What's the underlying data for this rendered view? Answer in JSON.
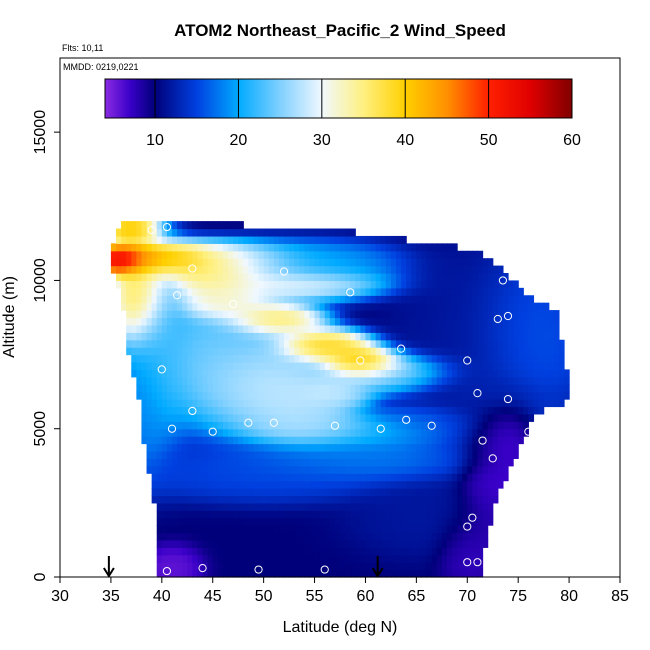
{
  "chart_data": {
    "type": "heatmap",
    "title": "ATOM2 Northeast_Pacific_2 Wind_Speed",
    "notes": [
      "Flts: 10,11",
      "MMDD: 0219,0221"
    ],
    "xlabel": "Latitude (deg N)",
    "ylabel": "Altitude (m)",
    "xlim": [
      30,
      85
    ],
    "ylim": [
      0,
      17500
    ],
    "x_ticks": [
      30,
      35,
      40,
      45,
      50,
      55,
      60,
      65,
      70,
      75,
      80,
      85
    ],
    "y_ticks": [
      0,
      5000,
      10000,
      15000
    ],
    "grid": false,
    "colorbar": {
      "range": [
        4,
        60
      ],
      "tick_values": [
        10,
        20,
        30,
        40,
        50,
        60
      ],
      "stops": [
        {
          "v": 4,
          "c": "#8B2BE2"
        },
        {
          "v": 7,
          "c": "#3A00C8"
        },
        {
          "v": 10,
          "c": "#00007A"
        },
        {
          "v": 15,
          "c": "#0040E0"
        },
        {
          "v": 20,
          "c": "#00AAFF"
        },
        {
          "v": 25,
          "c": "#80D0FF"
        },
        {
          "v": 30,
          "c": "#F0F8FF"
        },
        {
          "v": 35,
          "c": "#FFF080"
        },
        {
          "v": 40,
          "c": "#FFD000"
        },
        {
          "v": 45,
          "c": "#FF9000"
        },
        {
          "v": 50,
          "c": "#FF2000"
        },
        {
          "v": 55,
          "c": "#E00000"
        },
        {
          "v": 60,
          "c": "#800000"
        }
      ]
    },
    "curtain": {
      "lat_step": 0.5,
      "alt_step": 250,
      "left_edge": [
        [
          0,
          40
        ],
        [
          2500,
          39.5
        ],
        [
          4500,
          38.5
        ],
        [
          6000,
          38
        ],
        [
          7500,
          37
        ],
        [
          9000,
          36.5
        ],
        [
          11000,
          35
        ],
        [
          12000,
          36.5
        ]
      ],
      "right_edge": [
        [
          0,
          71.5
        ],
        [
          1000,
          71.5
        ],
        [
          2500,
          72.5
        ],
        [
          4000,
          74.5
        ],
        [
          5500,
          76.5
        ],
        [
          6000,
          80
        ],
        [
          7000,
          79.5
        ],
        [
          9000,
          78.5
        ],
        [
          9500,
          75.5
        ],
        [
          10500,
          73
        ],
        [
          11000,
          71
        ],
        [
          11750,
          56.5
        ],
        [
          12000,
          39.5
        ]
      ],
      "background_speed": 10,
      "features": [
        {
          "lat": 36,
          "alt": 10700,
          "value": 60,
          "slat": 1.2,
          "salt": 250
        },
        {
          "lat": 38.5,
          "alt": 10750,
          "value": 54,
          "slat": 2.5,
          "salt": 300
        },
        {
          "lat": 43,
          "alt": 10600,
          "value": 43,
          "slat": 3.5,
          "salt": 350
        },
        {
          "lat": 48,
          "alt": 10600,
          "value": 31,
          "slat": 3.5,
          "salt": 350
        },
        {
          "lat": 55,
          "alt": 10600,
          "value": 21,
          "slat": 4.5,
          "salt": 400
        },
        {
          "lat": 37,
          "alt": 11750,
          "value": 45,
          "slat": 1.5,
          "salt": 250
        },
        {
          "lat": 38,
          "alt": 9500,
          "value": 42,
          "slat": 1.5,
          "salt": 900
        },
        {
          "lat": 45,
          "alt": 10000,
          "value": 38,
          "slat": 2.5,
          "salt": 400
        },
        {
          "lat": 52,
          "alt": 9900,
          "value": 33,
          "slat": 5.0,
          "salt": 300
        },
        {
          "lat": 46,
          "alt": 9200,
          "value": 36,
          "slat": 2.5,
          "salt": 300
        },
        {
          "lat": 51,
          "alt": 8700,
          "value": 40,
          "slat": 2.5,
          "salt": 300
        },
        {
          "lat": 56,
          "alt": 7800,
          "value": 43,
          "slat": 2.5,
          "salt": 300
        },
        {
          "lat": 60,
          "alt": 7200,
          "value": 48,
          "slat": 2.0,
          "salt": 300
        },
        {
          "lat": 63,
          "alt": 7000,
          "value": 30,
          "slat": 3.0,
          "salt": 300
        },
        {
          "lat": 57,
          "alt": 6300,
          "value": 30,
          "slat": 2.0,
          "salt": 300
        },
        {
          "lat": 62,
          "alt": 6700,
          "value": 24,
          "slat": 3.0,
          "salt": 300
        },
        {
          "lat": 45,
          "alt": 7500,
          "value": 26,
          "slat": 4.0,
          "salt": 1200
        },
        {
          "lat": 50,
          "alt": 6500,
          "value": 30,
          "slat": 3.5,
          "salt": 800
        },
        {
          "lat": 54,
          "alt": 5800,
          "value": 29,
          "slat": 3.0,
          "salt": 700
        },
        {
          "lat": 40,
          "alt": 8000,
          "value": 22,
          "slat": 1.5,
          "salt": 1800
        },
        {
          "lat": 38.5,
          "alt": 5800,
          "value": 19,
          "slat": 1.0,
          "salt": 1200
        },
        {
          "lat": 56,
          "alt": 5000,
          "value": 28,
          "slat": 4.0,
          "salt": 300
        },
        {
          "lat": 62,
          "alt": 4800,
          "value": 20,
          "slat": 4.0,
          "salt": 300
        },
        {
          "lat": 60,
          "alt": 4000,
          "value": 19,
          "slat": 6.0,
          "salt": 400
        },
        {
          "lat": 65,
          "alt": 5300,
          "value": 18,
          "slat": 3.0,
          "salt": 300
        },
        {
          "lat": 50,
          "alt": 3500,
          "value": 16,
          "slat": 7.0,
          "salt": 500
        },
        {
          "lat": 66,
          "alt": 2000,
          "value": 12,
          "slat": 4.0,
          "salt": 700
        },
        {
          "lat": 72,
          "alt": 3000,
          "value": 6,
          "slat": 1.5,
          "salt": 1200
        },
        {
          "lat": 74,
          "alt": 4500,
          "value": 5,
          "slat": 1.5,
          "salt": 900
        },
        {
          "lat": 70,
          "alt": 1000,
          "value": 7,
          "slat": 1.5,
          "salt": 700
        },
        {
          "lat": 41,
          "alt": 300,
          "value": 5,
          "slat": 1.5,
          "salt": 400
        },
        {
          "lat": 70,
          "alt": 7500,
          "value": 12,
          "slat": 4.0,
          "salt": 2000
        },
        {
          "lat": 76,
          "alt": 8000,
          "value": 17,
          "slat": 3.0,
          "salt": 1500
        },
        {
          "lat": 73,
          "alt": 6200,
          "value": 13,
          "slat": 3.0,
          "salt": 300
        }
      ]
    },
    "flight_points": [
      [
        39,
        11700
      ],
      [
        40.5,
        11800
      ],
      [
        43,
        10400
      ],
      [
        52,
        10300
      ],
      [
        58.5,
        9600
      ],
      [
        73.5,
        10000
      ],
      [
        77,
        9600
      ],
      [
        78,
        9600
      ],
      [
        41.5,
        9500
      ],
      [
        47,
        9200
      ],
      [
        73,
        8700
      ],
      [
        74,
        8800
      ],
      [
        63.5,
        7700
      ],
      [
        59.5,
        7300
      ],
      [
        70,
        7300
      ],
      [
        40,
        7000
      ],
      [
        71,
        6200
      ],
      [
        74,
        6000
      ],
      [
        80,
        5800
      ],
      [
        43,
        5600
      ],
      [
        48.5,
        5200
      ],
      [
        51,
        5200
      ],
      [
        57,
        5100
      ],
      [
        64,
        5300
      ],
      [
        66.5,
        5100
      ],
      [
        41,
        5000
      ],
      [
        45,
        4900
      ],
      [
        61.5,
        5000
      ],
      [
        76,
        4900
      ],
      [
        71.5,
        4600
      ],
      [
        72.5,
        4000
      ],
      [
        70.5,
        2000
      ],
      [
        70,
        1700
      ],
      [
        71,
        500
      ],
      [
        70,
        500
      ],
      [
        40.5,
        200
      ],
      [
        44,
        300
      ],
      [
        49.5,
        250
      ],
      [
        56,
        250
      ]
    ],
    "arrows": [
      34.8,
      61.2
    ]
  }
}
